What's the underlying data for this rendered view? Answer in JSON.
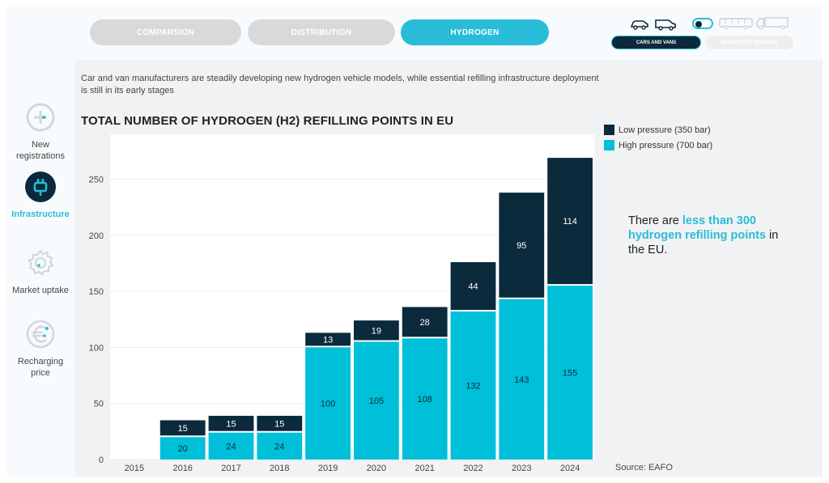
{
  "tabs": [
    {
      "label": "COMPARSION",
      "active": false
    },
    {
      "label": "DISTRIBUTION",
      "active": false
    },
    {
      "label": "HYDROGEN",
      "active": true
    }
  ],
  "vehicle_selector": {
    "cars_label": "CARS AND VANS",
    "heavy_label": "HEAVY DUTY VEHICLES"
  },
  "intro": "Car and van manufacturers are steadily developing new hydrogen vehicle models, while essential refilling infrastructure deployment is still in its early stages",
  "sidebar": {
    "items": [
      {
        "label": "New registrations",
        "icon": "plus-icon",
        "active": false
      },
      {
        "label": "Infrastructure",
        "icon": "charging-plug-icon",
        "active": true
      },
      {
        "label": "Market uptake",
        "icon": "gear-icon",
        "active": false
      },
      {
        "label": "Recharging price",
        "icon": "euro-icon",
        "active": false
      }
    ]
  },
  "callout": {
    "prefix": "There are ",
    "highlight": "less than 300 hydrogen refilling points",
    "suffix": " in the EU."
  },
  "source": "Source: EAFO",
  "colors": {
    "accent": "#29bcd8",
    "high": "#00bfd8",
    "low": "#0b2a3c"
  },
  "chart_data": {
    "type": "bar",
    "stacked": true,
    "title": "TOTAL NUMBER OF HYDROGEN (H2) REFILLING POINTS IN EU",
    "categories": [
      "2015",
      "2016",
      "2017",
      "2018",
      "2019",
      "2020",
      "2021",
      "2022",
      "2023",
      "2024"
    ],
    "series": [
      {
        "name": "High pressure (700 bar)",
        "values": [
          null,
          20,
          24,
          24,
          100,
          105,
          108,
          132,
          143,
          155
        ]
      },
      {
        "name": "Low pressure (350 bar)",
        "values": [
          null,
          15,
          15,
          15,
          13,
          19,
          28,
          44,
          95,
          114
        ]
      }
    ],
    "legend": [
      "Low pressure (350 bar)",
      "High pressure (700 bar)"
    ],
    "yticks": [
      "0",
      "50",
      "100",
      "150",
      "200",
      "250"
    ],
    "ylim": [
      0,
      290
    ],
    "legend_position": "right"
  }
}
